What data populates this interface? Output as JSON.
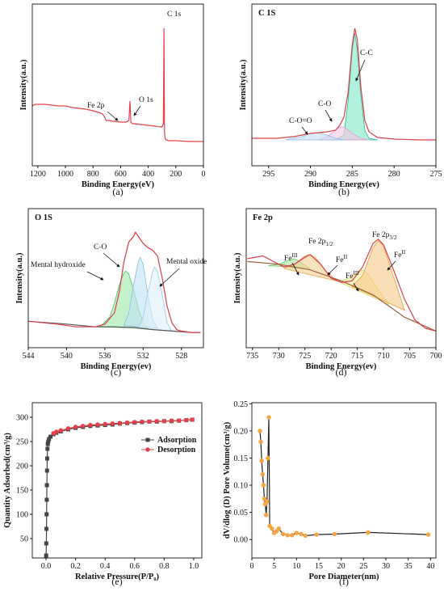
{
  "chart_data": [
    {
      "type": "line",
      "caption": "(a)",
      "xlabel": "Binding Energy(eV)",
      "ylabel": "Intensity(a.u.)",
      "xlim": [
        1240,
        0
      ],
      "ylim": [
        0,
        100
      ],
      "xticks": [
        1200,
        1000,
        800,
        600,
        400,
        200,
        0
      ],
      "annotations": [
        {
          "text": "C 1s"
        },
        {
          "text": "Fe 2p"
        },
        {
          "text": "O 1s"
        }
      ],
      "series": [
        {
          "color": "#e8404a",
          "x": [
            1240,
            1220,
            1200,
            1150,
            1100,
            1050,
            1000,
            950,
            900,
            850,
            800,
            760,
            730,
            715,
            705,
            690,
            650,
            600,
            560,
            540,
            532,
            526,
            515,
            500,
            450,
            400,
            350,
            300,
            290,
            286,
            284,
            282,
            278,
            270,
            250,
            200,
            100,
            0
          ],
          "values": [
            37,
            38,
            38,
            38,
            37.5,
            37,
            37,
            36,
            35.5,
            35,
            34,
            33,
            32,
            30,
            28,
            28,
            27.5,
            27,
            27,
            28,
            40,
            27,
            26,
            26,
            25.5,
            25,
            24.5,
            24,
            26,
            85,
            60,
            20,
            17,
            16,
            15.5,
            15.5,
            15,
            15
          ]
        }
      ]
    },
    {
      "type": "line",
      "caption": "(b)",
      "title": "C 1S",
      "xlabel": "Binding Energy(ev)",
      "ylabel": "Intensity(a.u.)",
      "xlim": [
        297,
        275
      ],
      "ylim": [
        0,
        100
      ],
      "xticks": [
        295,
        290,
        285,
        280,
        275
      ],
      "annotations": [
        {
          "text": "C-C"
        },
        {
          "text": "C-O"
        },
        {
          "text": "C-O=O"
        }
      ],
      "series": [
        {
          "color": "#2bb894",
          "fill": "#7fe8c8",
          "x": [
            287,
            286,
            285.5,
            285,
            284.7,
            284.4,
            284,
            283.5,
            283,
            282
          ],
          "values": [
            16,
            19,
            40,
            72,
            82,
            72,
            45,
            22,
            17,
            16
          ]
        },
        {
          "color": "#e39ad0",
          "fill": "#f5c6e6",
          "x": [
            289,
            288,
            287,
            286.5,
            286,
            285,
            284,
            283
          ],
          "values": [
            16,
            18,
            22,
            24,
            24,
            20,
            17,
            16
          ]
        },
        {
          "color": "#8cbbe8",
          "fill": "#c4def5",
          "x": [
            293,
            291,
            290,
            289,
            288,
            287,
            286
          ],
          "values": [
            16,
            18,
            20,
            20.5,
            19,
            17,
            16
          ]
        },
        {
          "color": "#d8404a",
          "x": [
            297,
            294,
            292,
            290,
            289,
            288,
            287,
            286.5,
            286,
            285.5,
            285,
            284.7,
            284.4,
            284,
            283.5,
            283,
            282,
            280,
            277,
            275
          ],
          "values": [
            17,
            17,
            18,
            20,
            20.5,
            21,
            22,
            25,
            30,
            45,
            75,
            85,
            78,
            50,
            28,
            21,
            17.5,
            16.5,
            16,
            16
          ]
        }
      ]
    },
    {
      "type": "line",
      "caption": "(c)",
      "title": "O 1S",
      "xlabel": "Binding Energy(ev)",
      "ylabel": "Intensity(a.u.)",
      "xlim": [
        544,
        525.7
      ],
      "ylim": [
        0,
        100
      ],
      "xticks": [
        544,
        540,
        536,
        532,
        528
      ],
      "annotations": [
        {
          "text": "C-O"
        },
        {
          "text": "Mental hydroxide"
        },
        {
          "text": "Mental oxide"
        }
      ],
      "series": [
        {
          "color": "#4cc25c",
          "fill": "#9ee8a6",
          "x": [
            536.5,
            535.5,
            535,
            534.5,
            534,
            533.8,
            533.5,
            533,
            532.5,
            532,
            531.5
          ],
          "values": [
            15,
            22,
            32,
            45,
            54,
            55,
            53,
            42,
            28,
            18,
            14
          ]
        },
        {
          "color": "#7fbfe6",
          "fill": "#bfe2f7",
          "x": [
            534,
            533.5,
            533,
            532.5,
            532.3,
            532,
            531.5,
            531,
            530.5
          ],
          "values": [
            16,
            25,
            45,
            62,
            65,
            60,
            38,
            20,
            14
          ]
        },
        {
          "color": "#9fcbe8",
          "fill": "#dceffa",
          "x": [
            532.5,
            532,
            531.5,
            531,
            530.8,
            530.5,
            530,
            529.5,
            529
          ],
          "values": [
            14,
            22,
            40,
            55,
            58,
            55,
            38,
            18,
            12
          ]
        },
        {
          "color": "#555555",
          "x": [
            544,
            540,
            537,
            535,
            533,
            531,
            529,
            527,
            526
          ],
          "values": [
            19,
            17,
            15,
            15,
            14.5,
            13,
            12,
            11,
            11
          ]
        },
        {
          "color": "#d8404a",
          "x": [
            544,
            541,
            539,
            537,
            536,
            535,
            534.5,
            534,
            533.5,
            533,
            532.8,
            532.5,
            532,
            531.5,
            531,
            530.5,
            530,
            529.5,
            529,
            528.5,
            528,
            527,
            526
          ],
          "values": [
            19,
            17,
            15,
            15,
            17,
            25,
            40,
            62,
            76,
            80,
            83,
            80,
            75,
            72,
            70,
            66,
            50,
            30,
            18,
            13,
            12,
            11,
            11
          ]
        }
      ]
    },
    {
      "type": "line",
      "caption": "(d)",
      "title": "Fe 2p",
      "xlabel": "Binding Energy(ev)",
      "ylabel": "Intensity(a.u.)",
      "xlim": [
        736.2,
        700
      ],
      "ylim": [
        0,
        100
      ],
      "xticks": [
        735,
        730,
        725,
        720,
        715,
        710,
        705,
        700
      ],
      "annotations": [
        {
          "text": "Fe",
          "sup": "III"
        },
        {
          "text": "Fe 2p",
          "sub": "1/2"
        },
        {
          "text": "Fe",
          "sup": "II"
        },
        {
          "text": "Fe",
          "sup": "III"
        },
        {
          "text": "Fe 2p",
          "sub": "3/2"
        },
        {
          "text": "Fe",
          "sup": "II"
        }
      ],
      "series": [
        {
          "color": "#6cc86a",
          "fill": "#a8e8a0",
          "x": [
            732,
            730,
            728,
            727,
            726,
            724
          ],
          "values": [
            59,
            60,
            63,
            64,
            62,
            57
          ]
        },
        {
          "color": "#e8a850",
          "fill": "#f7d090",
          "x": [
            729,
            727,
            725,
            724,
            723,
            721,
            719
          ],
          "values": [
            57,
            60,
            66,
            67,
            65,
            55,
            48
          ]
        },
        {
          "color": "#d8d060",
          "fill": "#f5f0a0",
          "x": [
            720,
            718,
            716,
            714,
            713,
            711,
            709
          ],
          "values": [
            50,
            48,
            51,
            56,
            53,
            42,
            31
          ]
        },
        {
          "color": "#e89a40",
          "fill": "#f7c888",
          "x": [
            716,
            714,
            712,
            711,
            710,
            708,
            706
          ],
          "values": [
            44,
            52,
            72,
            77,
            73,
            50,
            27
          ]
        },
        {
          "color": "#a06040",
          "x": [
            736,
            730,
            724,
            718,
            712,
            706,
            700
          ],
          "values": [
            62,
            60,
            56,
            48,
            38,
            22,
            12
          ]
        },
        {
          "color": "#d8404a",
          "x": [
            736,
            733,
            731,
            729,
            727,
            725,
            724,
            722,
            720,
            718,
            716,
            714,
            712,
            711,
            710,
            708,
            706,
            704,
            702,
            700
          ],
          "values": [
            64,
            66,
            62,
            58,
            60,
            65,
            67,
            60,
            50,
            47,
            48,
            58,
            75,
            78,
            74,
            55,
            35,
            20,
            14,
            12
          ]
        }
      ]
    },
    {
      "type": "line",
      "caption": "(e)",
      "xlabel": "Relative Pressure(P/P₀)",
      "ylabel": "Quantity Adsorbed(cm³/g)",
      "xlim": [
        -0.093,
        1.055
      ],
      "ylim": [
        10,
        330
      ],
      "xticks": [
        {
          "value": 0,
          "label": "0.0"
        },
        {
          "value": 0.2,
          "label": "0.2"
        },
        {
          "value": 0.4,
          "label": "0.4"
        },
        {
          "value": 0.6,
          "label": "0.6"
        },
        {
          "value": 0.8,
          "label": "0.8"
        },
        {
          "value": 1,
          "label": "1.0"
        }
      ],
      "yticks": [
        50,
        100,
        150,
        200,
        250,
        300
      ],
      "legend": "right",
      "series": [
        {
          "name": "Adsorption",
          "color": "#444444",
          "marker": "square",
          "x": [
            0.001,
            0.002,
            0.003,
            0.004,
            0.005,
            0.006,
            0.007,
            0.008,
            0.01,
            0.012,
            0.015,
            0.02,
            0.03,
            0.05,
            0.07,
            0.1,
            0.15,
            0.2,
            0.25,
            0.3,
            0.35,
            0.4,
            0.45,
            0.5,
            0.55,
            0.6,
            0.65,
            0.7,
            0.75,
            0.8,
            0.85,
            0.9,
            0.95,
            0.99
          ],
          "values": [
            15,
            40,
            70,
            100,
            130,
            160,
            190,
            215,
            235,
            245,
            250,
            255,
            260,
            265,
            268,
            271,
            275,
            278,
            280,
            282,
            283,
            284,
            285,
            287,
            288,
            289,
            290,
            291,
            291,
            292,
            292,
            293,
            294,
            295
          ]
        },
        {
          "name": "Desorption",
          "color": "#e8404a",
          "marker": "circle",
          "x": [
            0.99,
            0.95,
            0.9,
            0.85,
            0.8,
            0.75,
            0.7,
            0.65,
            0.6,
            0.55,
            0.5,
            0.45,
            0.4,
            0.35,
            0.3,
            0.25,
            0.2,
            0.15,
            0.1,
            0.07,
            0.05
          ],
          "values": [
            295,
            294,
            293,
            293,
            292,
            292,
            291,
            291,
            290,
            289,
            288,
            287,
            286,
            285,
            284,
            282,
            280,
            277,
            273,
            270,
            267
          ]
        }
      ]
    },
    {
      "type": "line",
      "caption": "(f)",
      "xlabel": "Pore Diameter(nm)",
      "ylabel": "dV/dlog (D) Pore Volume(cm³/g)",
      "xlim": [
        0,
        41.2
      ],
      "ylim": [
        -0.034,
        0.252
      ],
      "xticks": [
        0,
        5,
        10,
        15,
        20,
        25,
        30,
        35,
        40
      ],
      "yticks": [
        {
          "value": 0,
          "label": "0.00"
        },
        {
          "value": 0.05,
          "label": "0.05"
        },
        {
          "value": 0.1,
          "label": "0.10"
        },
        {
          "value": 0.15,
          "label": "0.15"
        },
        {
          "value": 0.2,
          "label": "0.20"
        },
        {
          "value": 0.25,
          "label": "0.25"
        }
      ],
      "series": [
        {
          "color": "#222222",
          "marker": "circle",
          "markerColor": "#f5a343",
          "x": [
            1.8,
            2.0,
            2.2,
            2.4,
            2.6,
            2.8,
            3.0,
            3.2,
            3.4,
            3.6,
            3.8,
            4.0,
            4.5,
            5.0,
            5.5,
            6.0,
            7.0,
            8.0,
            9.0,
            10.0,
            11.0,
            12.0,
            14.5,
            18.5,
            26,
            39.5
          ],
          "values": [
            0.2,
            0.18,
            0.145,
            0.12,
            0.1,
            0.075,
            0.065,
            0.045,
            0.07,
            0.15,
            0.225,
            0.025,
            0.02,
            0.012,
            0.015,
            0.02,
            0.01,
            0.008,
            0.008,
            0.012,
            0.01,
            0.007,
            0.009,
            0.01,
            0.013,
            0.009
          ]
        }
      ]
    }
  ]
}
